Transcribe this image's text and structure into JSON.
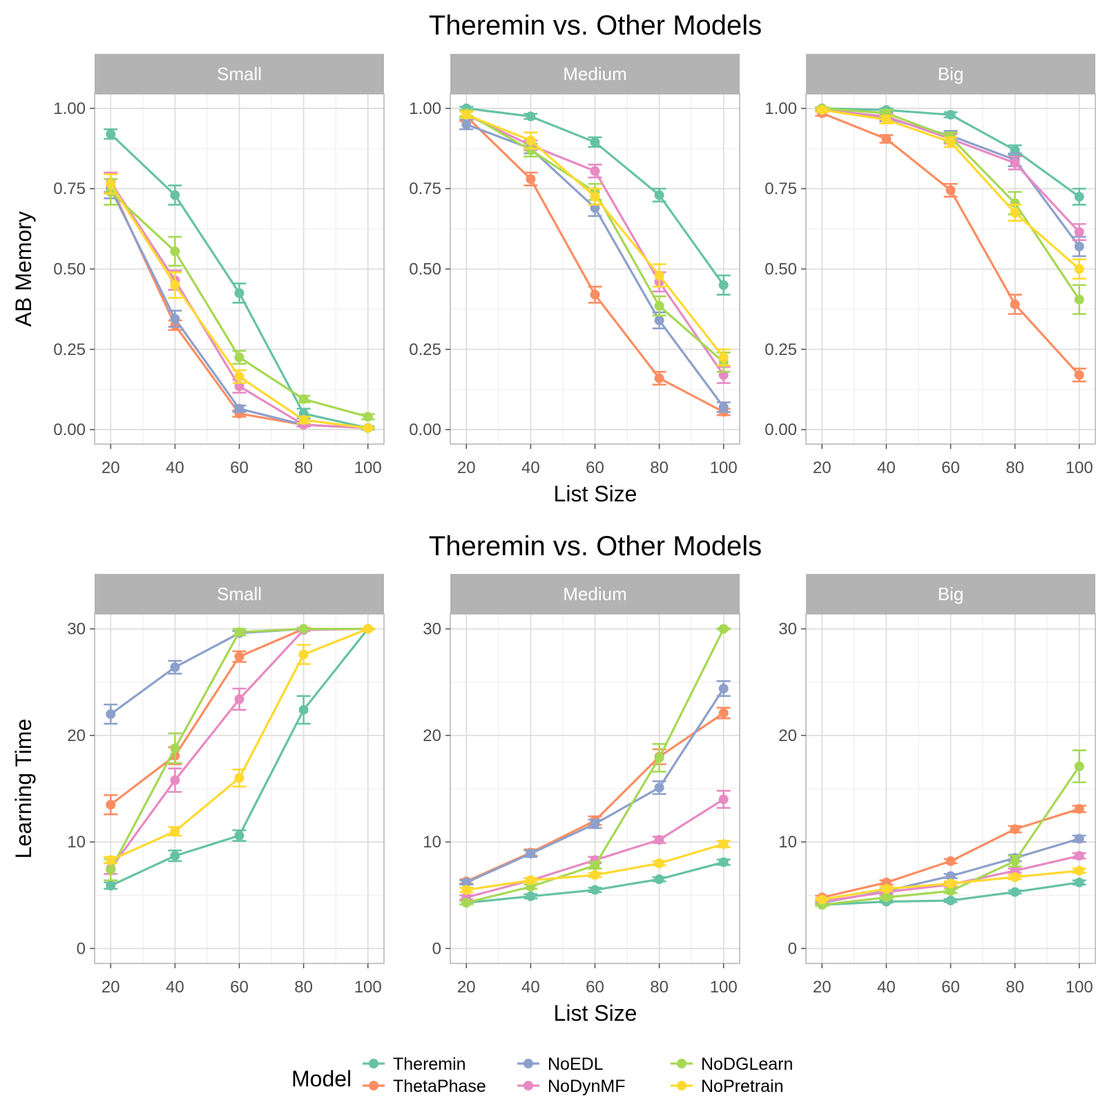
{
  "chart_data": [
    {
      "type": "line",
      "title": "Theremin vs. Other Models",
      "xlabel": "List Size",
      "ylabel": "AB Memory",
      "xlim": [
        15,
        105
      ],
      "ylim": [
        -0.045,
        1.045
      ],
      "x_ticks": [
        20,
        40,
        60,
        80,
        100
      ],
      "x_tick_labels": [
        "20",
        "40",
        "60",
        "80",
        "100"
      ],
      "y_ticks": [
        0,
        0.25,
        0.5,
        0.75,
        1.0
      ],
      "y_tick_labels": [
        "0.00",
        "0.25",
        "0.50",
        "0.75",
        "1.00"
      ],
      "grid": true,
      "x": [
        20,
        40,
        60,
        80,
        100
      ],
      "panels": [
        {
          "label": "Small",
          "series": [
            {
              "name": "Theremin",
              "values": [
                0.92,
                0.73,
                0.425,
                0.05,
                0.005
              ],
              "err": [
                0.015,
                0.03,
                0.03,
                0.015,
                0.005
              ]
            },
            {
              "name": "ThetaPhase",
              "values": [
                0.76,
                0.325,
                0.05,
                0.015,
                0.005
              ],
              "err": [
                0.04,
                0.015,
                0.01,
                0.005,
                0.002
              ]
            },
            {
              "name": "NoEDL",
              "values": [
                0.75,
                0.345,
                0.065,
                0.015,
                0.005
              ],
              "err": [
                0.03,
                0.025,
                0.01,
                0.005,
                0.002
              ]
            },
            {
              "name": "NoDynMF",
              "values": [
                0.77,
                0.465,
                0.135,
                0.015,
                0.005
              ],
              "err": [
                0.03,
                0.03,
                0.02,
                0.005,
                0.002
              ]
            },
            {
              "name": "NoDGLearn",
              "values": [
                0.74,
                0.555,
                0.225,
                0.095,
                0.04
              ],
              "err": [
                0.04,
                0.045,
                0.02,
                0.01,
                0.008
              ]
            },
            {
              "name": "NoPretrain",
              "values": [
                0.765,
                0.45,
                0.165,
                0.03,
                0.005
              ],
              "err": [
                0.03,
                0.04,
                0.02,
                0.01,
                0.002
              ]
            }
          ]
        },
        {
          "label": "Medium",
          "series": [
            {
              "name": "Theremin",
              "values": [
                1.0,
                0.975,
                0.895,
                0.73,
                0.45
              ],
              "err": [
                0.005,
                0.008,
                0.015,
                0.02,
                0.03
              ]
            },
            {
              "name": "ThetaPhase",
              "values": [
                0.975,
                0.78,
                0.42,
                0.16,
                0.055
              ],
              "err": [
                0.015,
                0.02,
                0.025,
                0.02,
                0.01
              ]
            },
            {
              "name": "NoEDL",
              "values": [
                0.95,
                0.875,
                0.69,
                0.34,
                0.07
              ],
              "err": [
                0.015,
                0.015,
                0.025,
                0.025,
                0.015
              ]
            },
            {
              "name": "NoDynMF",
              "values": [
                0.98,
                0.885,
                0.805,
                0.46,
                0.17
              ],
              "err": [
                0.01,
                0.015,
                0.02,
                0.03,
                0.025
              ]
            },
            {
              "name": "NoDGLearn",
              "values": [
                0.985,
                0.87,
                0.74,
                0.385,
                0.21
              ],
              "err": [
                0.01,
                0.02,
                0.025,
                0.03,
                0.03
              ]
            },
            {
              "name": "NoPretrain",
              "values": [
                0.98,
                0.9,
                0.725,
                0.48,
                0.225
              ],
              "err": [
                0.01,
                0.025,
                0.025,
                0.035,
                0.025
              ]
            }
          ]
        },
        {
          "label": "Big",
          "series": [
            {
              "name": "Theremin",
              "values": [
                1.0,
                0.995,
                0.98,
                0.87,
                0.725
              ],
              "err": [
                0.003,
                0.005,
                0.008,
                0.015,
                0.025
              ]
            },
            {
              "name": "ThetaPhase",
              "values": [
                0.985,
                0.905,
                0.745,
                0.39,
                0.17
              ],
              "err": [
                0.008,
                0.012,
                0.02,
                0.03,
                0.02
              ]
            },
            {
              "name": "NoEDL",
              "values": [
                1.0,
                0.97,
                0.915,
                0.84,
                0.57
              ],
              "err": [
                0.003,
                0.01,
                0.015,
                0.02,
                0.03
              ]
            },
            {
              "name": "NoDynMF",
              "values": [
                0.995,
                0.975,
                0.905,
                0.83,
                0.615
              ],
              "err": [
                0.005,
                0.01,
                0.015,
                0.02,
                0.025
              ]
            },
            {
              "name": "NoDGLearn",
              "values": [
                1.0,
                0.985,
                0.91,
                0.705,
                0.405
              ],
              "err": [
                0.003,
                0.01,
                0.015,
                0.035,
                0.045
              ]
            },
            {
              "name": "NoPretrain",
              "values": [
                0.995,
                0.965,
                0.895,
                0.675,
                0.5
              ],
              "err": [
                0.005,
                0.012,
                0.015,
                0.025,
                0.03
              ]
            }
          ]
        }
      ]
    },
    {
      "type": "line",
      "title": "Theremin vs. Other Models",
      "xlabel": "List Size",
      "ylabel": "Learning Time",
      "xlim": [
        15,
        105
      ],
      "ylim": [
        -1.4,
        31.4
      ],
      "x_ticks": [
        20,
        40,
        60,
        80,
        100
      ],
      "x_tick_labels": [
        "20",
        "40",
        "60",
        "80",
        "100"
      ],
      "y_ticks": [
        0,
        10,
        20,
        30
      ],
      "y_tick_labels": [
        "0",
        "10",
        "20",
        "30"
      ],
      "grid": true,
      "x": [
        20,
        40,
        60,
        80,
        100
      ],
      "panels": [
        {
          "label": "Small",
          "series": [
            {
              "name": "Theremin",
              "values": [
                5.9,
                8.7,
                10.6,
                22.4,
                30
              ],
              "err": [
                0.3,
                0.5,
                0.5,
                1.3,
                0.05
              ]
            },
            {
              "name": "ThetaPhase",
              "values": [
                13.5,
                18.1,
                27.4,
                30,
                30
              ],
              "err": [
                0.9,
                0.8,
                0.5,
                0.1,
                0.05
              ]
            },
            {
              "name": "NoEDL",
              "values": [
                22.0,
                26.4,
                29.6,
                30,
                30
              ],
              "err": [
                0.9,
                0.6,
                0.2,
                0.05,
                0.05
              ]
            },
            {
              "name": "NoDynMF",
              "values": [
                7.5,
                15.8,
                23.4,
                29.9,
                30
              ],
              "err": [
                0.5,
                1.1,
                1.0,
                0.1,
                0.05
              ]
            },
            {
              "name": "NoDGLearn",
              "values": [
                7.4,
                18.8,
                29.7,
                30,
                30
              ],
              "err": [
                1.0,
                1.4,
                0.3,
                0.05,
                0.05
              ]
            },
            {
              "name": "NoPretrain",
              "values": [
                8.3,
                11.0,
                16.0,
                27.6,
                30
              ],
              "err": [
                0.3,
                0.4,
                0.8,
                0.9,
                0.05
              ]
            }
          ]
        },
        {
          "label": "Medium",
          "series": [
            {
              "name": "Theremin",
              "values": [
                4.3,
                4.9,
                5.5,
                6.5,
                8.1
              ],
              "err": [
                0.15,
                0.2,
                0.2,
                0.2,
                0.25
              ]
            },
            {
              "name": "ThetaPhase",
              "values": [
                6.3,
                9.0,
                12.0,
                18.0,
                22.1
              ],
              "err": [
                0.2,
                0.3,
                0.4,
                0.7,
                0.5
              ]
            },
            {
              "name": "NoEDL",
              "values": [
                6.2,
                8.9,
                11.7,
                15.1,
                24.4
              ],
              "err": [
                0.2,
                0.3,
                0.4,
                0.6,
                0.7
              ]
            },
            {
              "name": "NoDynMF",
              "values": [
                4.8,
                6.4,
                8.3,
                10.2,
                14.0
              ],
              "err": [
                0.2,
                0.2,
                0.3,
                0.3,
                0.8
              ]
            },
            {
              "name": "NoDGLearn",
              "values": [
                4.3,
                5.8,
                7.8,
                17.9,
                30.0
              ],
              "err": [
                0.15,
                0.2,
                0.3,
                1.3,
                0.05
              ]
            },
            {
              "name": "NoPretrain",
              "values": [
                5.5,
                6.4,
                6.9,
                8.0,
                9.8
              ],
              "err": [
                0.2,
                0.2,
                0.2,
                0.2,
                0.3
              ]
            }
          ]
        },
        {
          "label": "Big",
          "series": [
            {
              "name": "Theremin",
              "values": [
                4.1,
                4.4,
                4.5,
                5.3,
                6.2
              ],
              "err": [
                0.1,
                0.1,
                0.15,
                0.15,
                0.2
              ]
            },
            {
              "name": "ThetaPhase",
              "values": [
                4.8,
                6.2,
                8.2,
                11.2,
                13.1
              ],
              "err": [
                0.15,
                0.2,
                0.2,
                0.3,
                0.3
              ]
            },
            {
              "name": "NoEDL",
              "values": [
                4.3,
                5.4,
                6.8,
                8.5,
                10.3
              ],
              "err": [
                0.1,
                0.2,
                0.2,
                0.3,
                0.3
              ]
            },
            {
              "name": "NoDynMF",
              "values": [
                4.4,
                5.3,
                6.0,
                7.3,
                8.7
              ],
              "err": [
                0.1,
                0.2,
                0.2,
                0.2,
                0.25
              ]
            },
            {
              "name": "NoDGLearn",
              "values": [
                4.1,
                4.8,
                5.4,
                8.2,
                17.1
              ],
              "err": [
                0.1,
                0.15,
                0.2,
                0.5,
                1.5
              ]
            },
            {
              "name": "NoPretrain",
              "values": [
                4.6,
                5.6,
                6.1,
                6.7,
                7.3
              ],
              "err": [
                0.1,
                0.2,
                0.2,
                0.2,
                0.2
              ]
            }
          ]
        }
      ]
    }
  ],
  "legend": {
    "title": "Model",
    "placement": "bottom",
    "items": [
      {
        "name": "Theremin",
        "color": "#66c2a5"
      },
      {
        "name": "ThetaPhase",
        "color": "#fc8d62"
      },
      {
        "name": "NoEDL",
        "color": "#8da0cb"
      },
      {
        "name": "NoDynMF",
        "color": "#e78ac3"
      },
      {
        "name": "NoDGLearn",
        "color": "#a6d854"
      },
      {
        "name": "NoPretrain",
        "color": "#ffd92f"
      }
    ]
  },
  "style": {
    "strip_fill": "#b3b3b3",
    "panel_border": "#b3b3b3",
    "grid_major": "#dedede",
    "grid_minor": "#efefef",
    "tick_color": "#4d4d4d"
  }
}
